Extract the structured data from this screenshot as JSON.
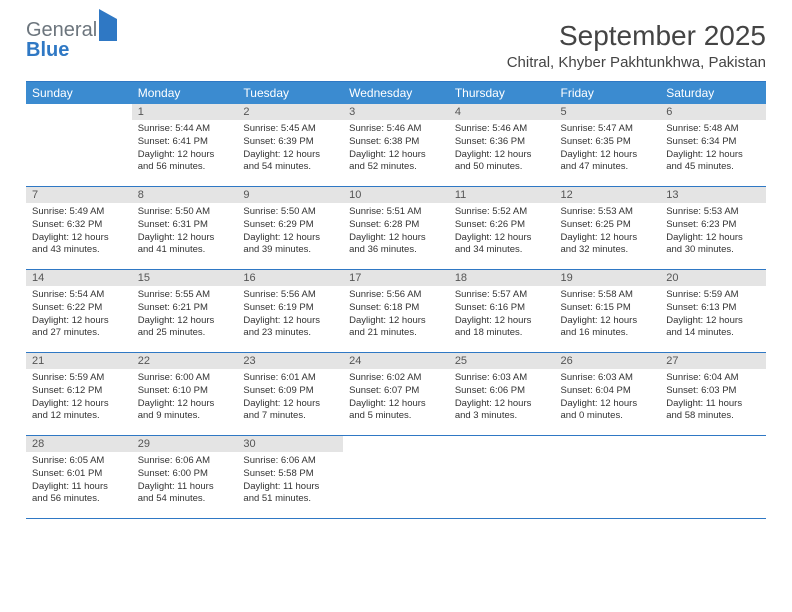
{
  "brand": {
    "part1": "General",
    "part2": "Blue"
  },
  "title": "September 2025",
  "location": "Chitral, Khyber Pakhtunkhwa, Pakistan",
  "colors": {
    "header_bg": "#3b8bd0",
    "header_border": "#2f78c4",
    "daynum_bg": "#e4e4e4",
    "text": "#333333",
    "logo_gray": "#6c757d",
    "logo_blue": "#2f78c4"
  },
  "weekdays": [
    "Sunday",
    "Monday",
    "Tuesday",
    "Wednesday",
    "Thursday",
    "Friday",
    "Saturday"
  ],
  "weeks": [
    [
      null,
      {
        "n": "1",
        "sr": "5:44 AM",
        "ss": "6:41 PM",
        "dl": "12 hours and 56 minutes."
      },
      {
        "n": "2",
        "sr": "5:45 AM",
        "ss": "6:39 PM",
        "dl": "12 hours and 54 minutes."
      },
      {
        "n": "3",
        "sr": "5:46 AM",
        "ss": "6:38 PM",
        "dl": "12 hours and 52 minutes."
      },
      {
        "n": "4",
        "sr": "5:46 AM",
        "ss": "6:36 PM",
        "dl": "12 hours and 50 minutes."
      },
      {
        "n": "5",
        "sr": "5:47 AM",
        "ss": "6:35 PM",
        "dl": "12 hours and 47 minutes."
      },
      {
        "n": "6",
        "sr": "5:48 AM",
        "ss": "6:34 PM",
        "dl": "12 hours and 45 minutes."
      }
    ],
    [
      {
        "n": "7",
        "sr": "5:49 AM",
        "ss": "6:32 PM",
        "dl": "12 hours and 43 minutes."
      },
      {
        "n": "8",
        "sr": "5:50 AM",
        "ss": "6:31 PM",
        "dl": "12 hours and 41 minutes."
      },
      {
        "n": "9",
        "sr": "5:50 AM",
        "ss": "6:29 PM",
        "dl": "12 hours and 39 minutes."
      },
      {
        "n": "10",
        "sr": "5:51 AM",
        "ss": "6:28 PM",
        "dl": "12 hours and 36 minutes."
      },
      {
        "n": "11",
        "sr": "5:52 AM",
        "ss": "6:26 PM",
        "dl": "12 hours and 34 minutes."
      },
      {
        "n": "12",
        "sr": "5:53 AM",
        "ss": "6:25 PM",
        "dl": "12 hours and 32 minutes."
      },
      {
        "n": "13",
        "sr": "5:53 AM",
        "ss": "6:23 PM",
        "dl": "12 hours and 30 minutes."
      }
    ],
    [
      {
        "n": "14",
        "sr": "5:54 AM",
        "ss": "6:22 PM",
        "dl": "12 hours and 27 minutes."
      },
      {
        "n": "15",
        "sr": "5:55 AM",
        "ss": "6:21 PM",
        "dl": "12 hours and 25 minutes."
      },
      {
        "n": "16",
        "sr": "5:56 AM",
        "ss": "6:19 PM",
        "dl": "12 hours and 23 minutes."
      },
      {
        "n": "17",
        "sr": "5:56 AM",
        "ss": "6:18 PM",
        "dl": "12 hours and 21 minutes."
      },
      {
        "n": "18",
        "sr": "5:57 AM",
        "ss": "6:16 PM",
        "dl": "12 hours and 18 minutes."
      },
      {
        "n": "19",
        "sr": "5:58 AM",
        "ss": "6:15 PM",
        "dl": "12 hours and 16 minutes."
      },
      {
        "n": "20",
        "sr": "5:59 AM",
        "ss": "6:13 PM",
        "dl": "12 hours and 14 minutes."
      }
    ],
    [
      {
        "n": "21",
        "sr": "5:59 AM",
        "ss": "6:12 PM",
        "dl": "12 hours and 12 minutes."
      },
      {
        "n": "22",
        "sr": "6:00 AM",
        "ss": "6:10 PM",
        "dl": "12 hours and 9 minutes."
      },
      {
        "n": "23",
        "sr": "6:01 AM",
        "ss": "6:09 PM",
        "dl": "12 hours and 7 minutes."
      },
      {
        "n": "24",
        "sr": "6:02 AM",
        "ss": "6:07 PM",
        "dl": "12 hours and 5 minutes."
      },
      {
        "n": "25",
        "sr": "6:03 AM",
        "ss": "6:06 PM",
        "dl": "12 hours and 3 minutes."
      },
      {
        "n": "26",
        "sr": "6:03 AM",
        "ss": "6:04 PM",
        "dl": "12 hours and 0 minutes."
      },
      {
        "n": "27",
        "sr": "6:04 AM",
        "ss": "6:03 PM",
        "dl": "11 hours and 58 minutes."
      }
    ],
    [
      {
        "n": "28",
        "sr": "6:05 AM",
        "ss": "6:01 PM",
        "dl": "11 hours and 56 minutes."
      },
      {
        "n": "29",
        "sr": "6:06 AM",
        "ss": "6:00 PM",
        "dl": "11 hours and 54 minutes."
      },
      {
        "n": "30",
        "sr": "6:06 AM",
        "ss": "5:58 PM",
        "dl": "11 hours and 51 minutes."
      },
      null,
      null,
      null,
      null
    ]
  ],
  "labels": {
    "sunrise": "Sunrise:",
    "sunset": "Sunset:",
    "daylight": "Daylight:"
  }
}
